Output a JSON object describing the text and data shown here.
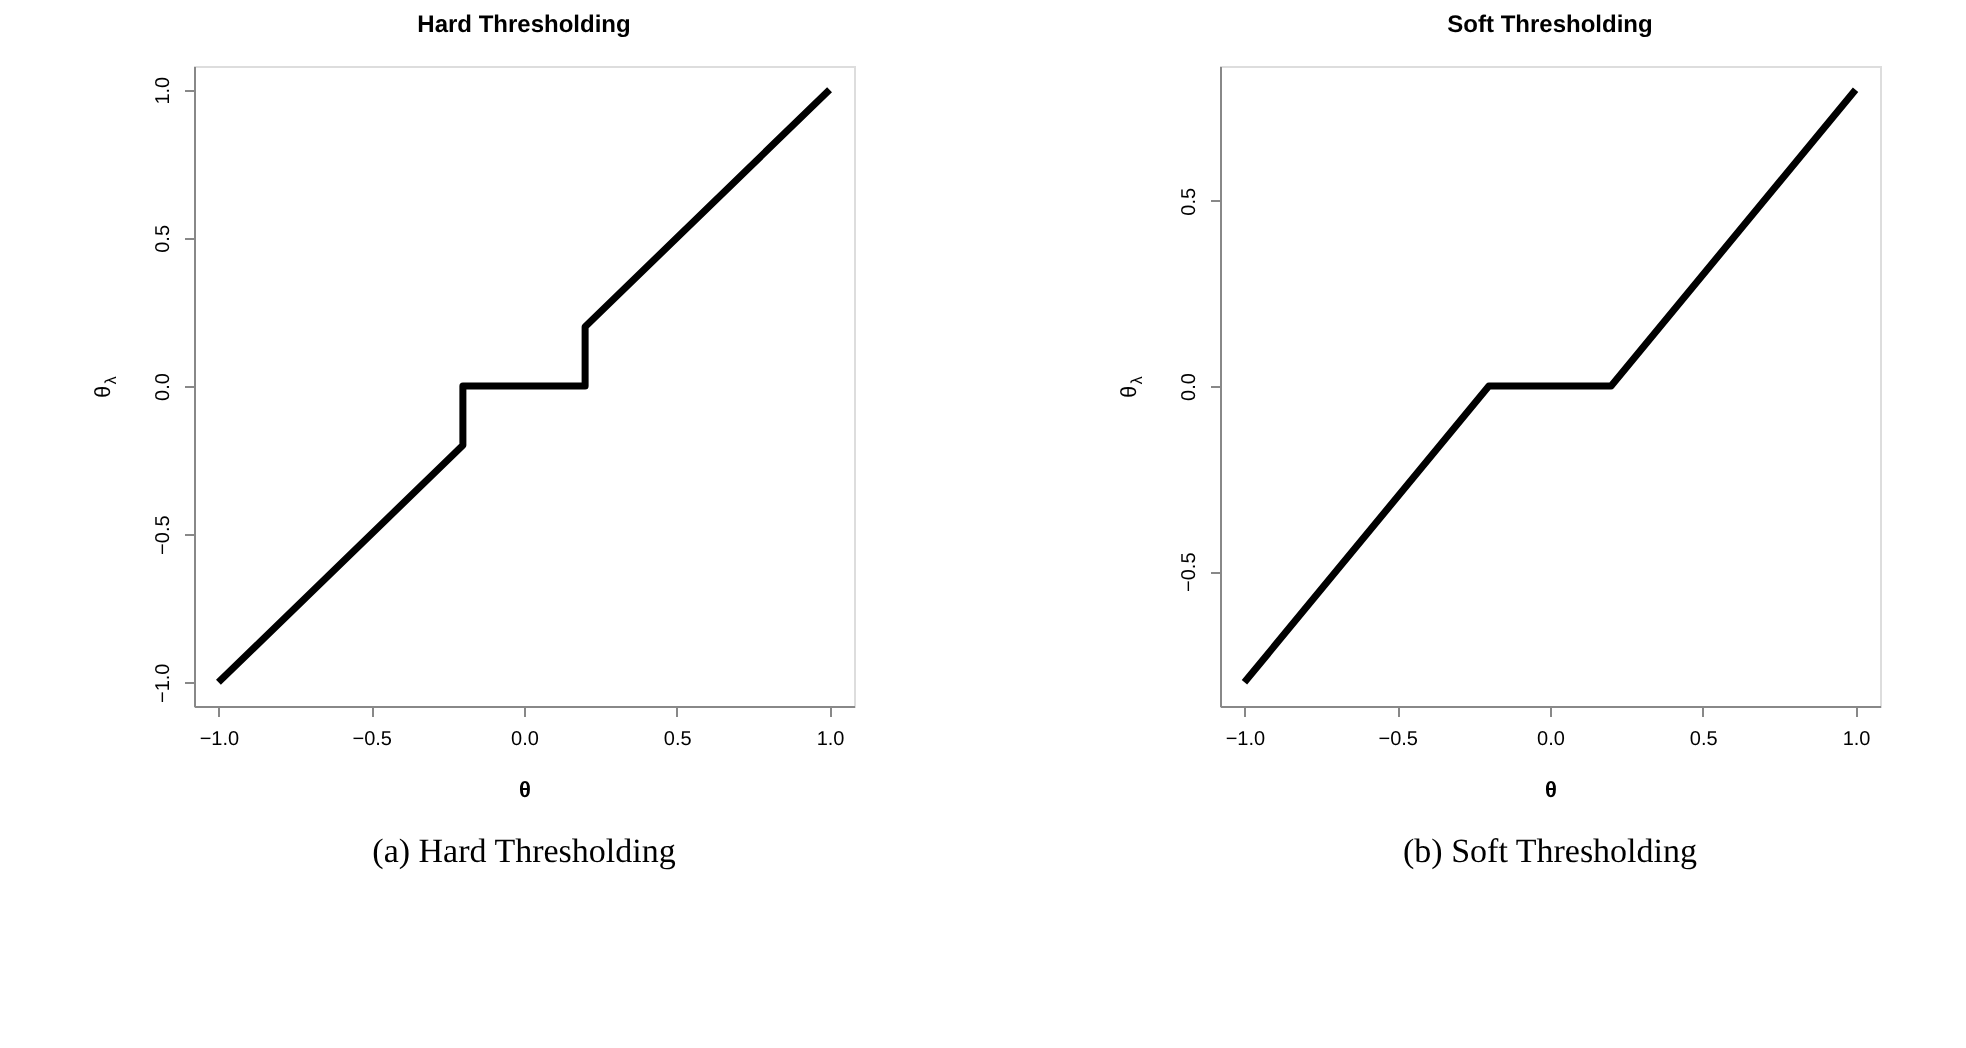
{
  "chart_data": [
    {
      "type": "line",
      "title": "Hard Thresholding",
      "xlabel": "θ",
      "ylabel": "θ$_{λ}$",
      "annotations": [
        "(a) Hard Thresholding"
      ],
      "series": [
        {
          "color": "#000000",
          "x": [
            -1,
            -0.2,
            -0.2,
            0.2,
            0.2,
            1
          ],
          "values": [
            -1,
            -0.2,
            0,
            0,
            0.2,
            1
          ]
        }
      ],
      "xlim": [
        -1.08,
        1.08
      ],
      "ylim": [
        -1.08,
        1.08
      ],
      "xticks": [
        {
          "value": -1,
          "label": "−1.0"
        },
        {
          "value": -0.5,
          "label": "−0.5"
        },
        {
          "value": 0,
          "label": "0.0"
        },
        {
          "value": 0.5,
          "label": "0.5"
        },
        {
          "value": 1,
          "label": "1.0"
        }
      ],
      "yticks": [
        {
          "value": -1,
          "label": "−1.0"
        },
        {
          "value": -0.5,
          "label": "−0.5"
        },
        {
          "value": 0,
          "label": "0.0"
        },
        {
          "value": 0.5,
          "label": "0.5"
        },
        {
          "value": 1,
          "label": "1.0"
        }
      ],
      "grid": false,
      "marker": "none",
      "line_style": "solid"
    },
    {
      "type": "line",
      "title": "Soft Thresholding",
      "xlabel": "θ",
      "ylabel": "θ$_{λ}$",
      "annotations": [
        "(b) Soft Thresholding"
      ],
      "series": [
        {
          "color": "#000000",
          "x": [
            -1,
            -0.2,
            0.2,
            1
          ],
          "values": [
            -0.8,
            0,
            0,
            0.8
          ]
        }
      ],
      "xlim": [
        -1.08,
        1.08
      ],
      "ylim": [
        -0.864,
        0.864
      ],
      "xticks": [
        {
          "value": -1,
          "label": "−1.0"
        },
        {
          "value": -0.5,
          "label": "−0.5"
        },
        {
          "value": 0,
          "label": "0.0"
        },
        {
          "value": 0.5,
          "label": "0.5"
        },
        {
          "value": 1,
          "label": "1.0"
        }
      ],
      "yticks": [
        {
          "value": -0.5,
          "label": "−0.5"
        },
        {
          "value": 0,
          "label": "0.0"
        },
        {
          "value": 0.5,
          "label": "0.5"
        }
      ],
      "grid": false,
      "marker": "none",
      "line_style": "solid"
    }
  ]
}
